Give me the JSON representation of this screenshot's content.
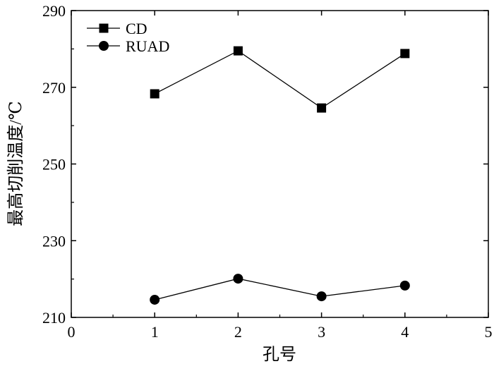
{
  "chart_data": {
    "type": "line",
    "title": "",
    "xlabel": "孔号",
    "ylabel": "最高切削温度/℃",
    "xlim": [
      0,
      5
    ],
    "ylim": [
      210,
      290
    ],
    "xticks": [
      0,
      1,
      2,
      3,
      4,
      5
    ],
    "yticks": [
      210,
      230,
      250,
      270,
      290
    ],
    "x": [
      1,
      2,
      3,
      4
    ],
    "grid": false,
    "legend_position": "top-left",
    "series": [
      {
        "name": "CD",
        "marker": "square",
        "values": [
          268.3,
          279.5,
          264.6,
          278.8
        ]
      },
      {
        "name": "RUAD",
        "marker": "circle",
        "values": [
          214.6,
          220.1,
          215.5,
          218.3
        ]
      }
    ]
  }
}
